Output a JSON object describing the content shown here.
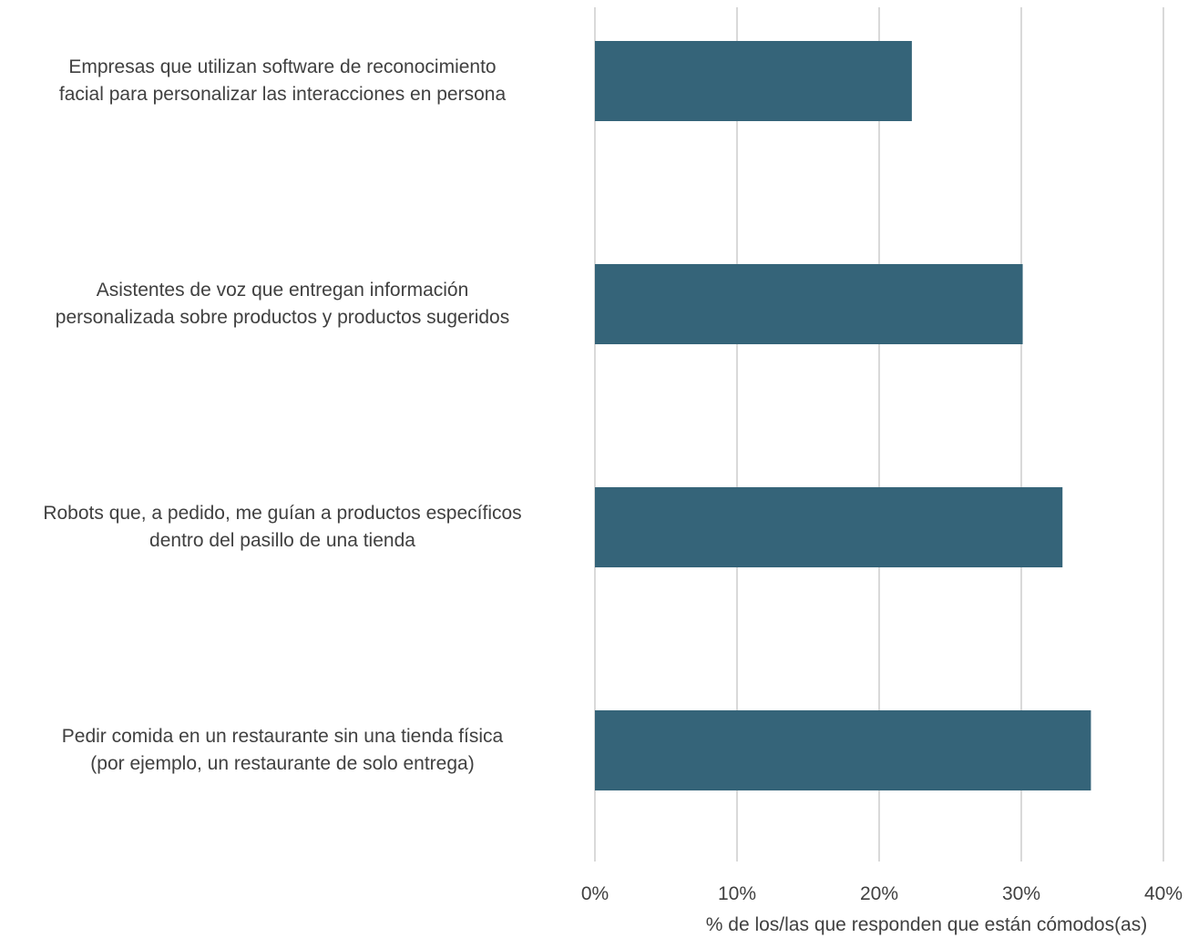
{
  "chart_data": {
    "type": "bar",
    "orientation": "horizontal",
    "categories": [
      "Empresas que utilizan software de reconocimiento facial para personalizar las interacciones en persona",
      "Asistentes de voz que entregan información personalizada sobre productos y productos sugeridos",
      "Robots que, a pedido, me guían a productos específicos dentro del pasillo de una tienda",
      "Pedir comida en un restaurante sin una tienda física (por ejemplo, un restaurante de solo entrega)"
    ],
    "category_lines": [
      [
        "Empresas que utilizan software de reconocimiento",
        "facial para personalizar las interacciones en persona"
      ],
      [
        "Asistentes de voz que entregan información",
        "personalizada sobre productos y productos sugeridos"
      ],
      [
        "Robots que, a pedido, me guían a productos específicos",
        "dentro del pasillo de una tienda"
      ],
      [
        "Pedir comida en un restaurante sin una tienda física",
        "(por ejemplo, un restaurante de solo entrega)"
      ]
    ],
    "values": [
      22.3,
      30.1,
      32.9,
      34.9
    ],
    "xlim": [
      0,
      40
    ],
    "xticks": [
      0,
      10,
      20,
      30,
      40
    ],
    "xtick_labels": [
      "0%",
      "10%",
      "20%",
      "30%",
      "40%"
    ],
    "xlabel": "% de los/las que responden que están cómodos(as)",
    "ylabel": "",
    "title": "",
    "grid": true,
    "legend": "none",
    "bar_color": "#356479",
    "grid_color": "#d9d9d9",
    "text_color": "#404040"
  }
}
